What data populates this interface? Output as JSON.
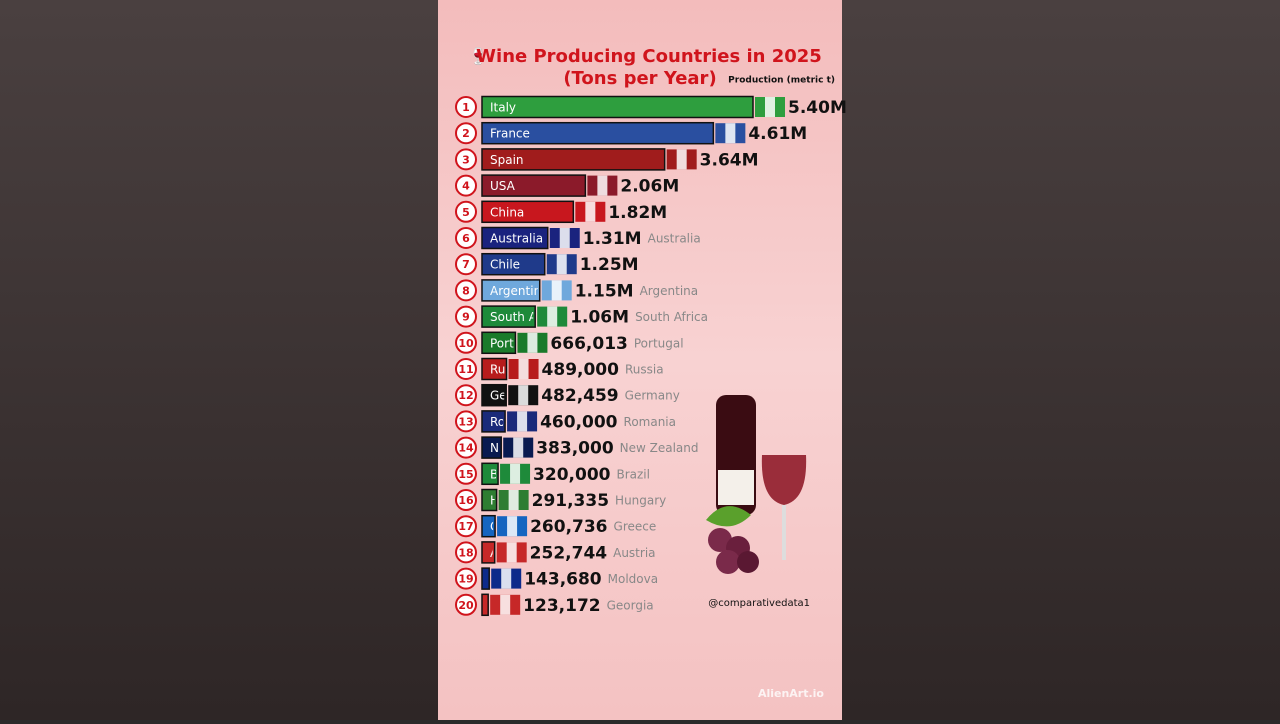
{
  "chart_data": {
    "type": "bar",
    "orientation": "horizontal",
    "title": "Wine Producing Countries in 2025",
    "subtitle": "(Tons per Year)",
    "x_label": "Production (metric t)",
    "ranks": [
      1,
      2,
      3,
      4,
      5,
      6,
      7,
      8,
      9,
      10,
      11,
      12,
      13,
      14,
      15,
      16,
      17,
      18,
      19,
      20
    ],
    "categories": [
      "Italy",
      "France",
      "Spain",
      "USA",
      "China",
      "Australia",
      "Chile",
      "Argentina",
      "South Africa",
      "Portugal",
      "Russia",
      "Germany",
      "Romania",
      "New Zealand",
      "Brazil",
      "Hungary",
      "Greece",
      "Austria",
      "Moldova",
      "Georgia"
    ],
    "values": [
      5400000,
      4610000,
      3640000,
      2060000,
      1820000,
      1310000,
      1250000,
      1150000,
      1060000,
      666013,
      489000,
      482459,
      460000,
      383000,
      320000,
      291335,
      260736,
      252744,
      143680,
      123172
    ],
    "value_labels": [
      "5.40M",
      "4.61M",
      "3.64M",
      "2.06M",
      "1.82M",
      "1.31M",
      "1.25M",
      "1.15M",
      "1.06M",
      "666,013",
      "489,000",
      "482,459",
      "460,000",
      "383,000",
      "320,000",
      "291,335",
      "260,736",
      "252,744",
      "143,680",
      "123,172"
    ],
    "colors": [
      "#2e9e3e",
      "#2a4fa0",
      "#a01c1c",
      "#8b1a2a",
      "#c8171e",
      "#1a237e",
      "#1f3a8a",
      "#6fa8dc",
      "#1e8a3a",
      "#1a7a2a",
      "#b71c1c",
      "#111111",
      "#1a2a7a",
      "#0a1a50",
      "#1e8a3a",
      "#2e7d32",
      "#1565c0",
      "#c62828",
      "#0d2a8a",
      "#c62828"
    ],
    "xlim": [
      0,
      5400000
    ],
    "watermark": "@comparativedata1",
    "brand": "AlienArt.io"
  }
}
